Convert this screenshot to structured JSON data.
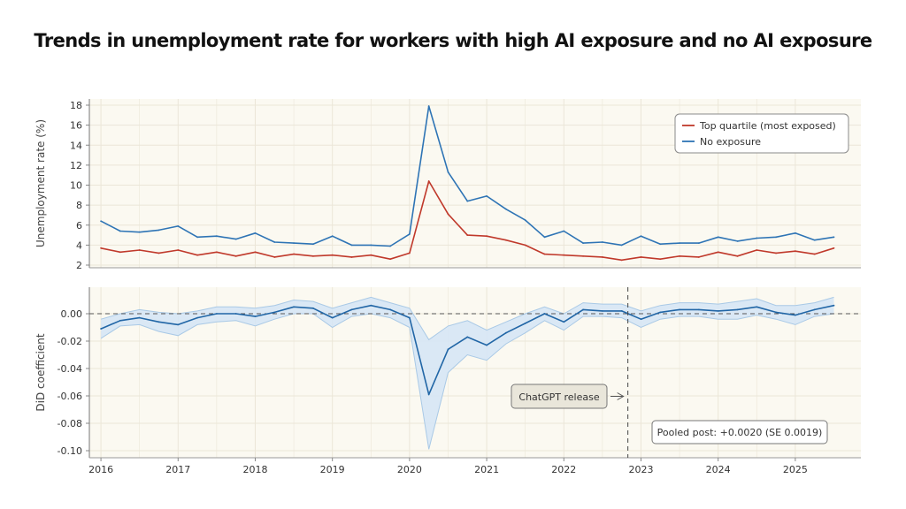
{
  "title": "Trends in unemployment rate for workers with high AI exposure and no AI exposure",
  "colors": {
    "top_quartile": "#c0392b",
    "no_exposure": "#2e74b5",
    "did_line": "#2166a6",
    "ci_fill": "#d6e6f5",
    "ci_stroke": "#a9c9e6",
    "panel_bg": "#fbf9f1",
    "grid": "#ebe6d8"
  },
  "chart_data": [
    {
      "type": "line",
      "ylabel": "Unemployment rate (%)",
      "ylim": [
        2,
        18
      ],
      "yticks": [
        2,
        4,
        6,
        8,
        10,
        12,
        14,
        16,
        18
      ],
      "grid": true,
      "legend_position": "top-right",
      "x": [
        2016.0,
        2016.25,
        2016.5,
        2016.75,
        2017.0,
        2017.25,
        2017.5,
        2017.75,
        2018.0,
        2018.25,
        2018.5,
        2018.75,
        2019.0,
        2019.25,
        2019.5,
        2019.75,
        2020.0,
        2020.25,
        2020.5,
        2020.75,
        2021.0,
        2021.25,
        2021.5,
        2021.75,
        2022.0,
        2022.25,
        2022.5,
        2022.75,
        2023.0,
        2023.25,
        2023.5,
        2023.75,
        2024.0,
        2024.25,
        2024.5,
        2024.75,
        2025.0,
        2025.25,
        2025.5
      ],
      "series": [
        {
          "name": "Top quartile (most exposed)",
          "values": [
            3.7,
            3.3,
            3.5,
            3.2,
            3.5,
            3.0,
            3.3,
            2.9,
            3.3,
            2.8,
            3.1,
            2.9,
            3.0,
            2.8,
            3.0,
            2.6,
            3.2,
            10.4,
            7.1,
            5.0,
            4.9,
            4.5,
            4.0,
            3.1,
            3.0,
            2.9,
            2.8,
            2.5,
            2.8,
            2.6,
            2.9,
            2.8,
            3.3,
            2.9,
            3.5,
            3.2,
            3.4,
            3.1,
            3.7
          ]
        },
        {
          "name": "No exposure",
          "values": [
            6.4,
            5.4,
            5.3,
            5.5,
            5.9,
            4.8,
            4.9,
            4.6,
            5.2,
            4.3,
            4.2,
            4.1,
            4.9,
            4.0,
            4.0,
            3.9,
            5.1,
            17.9,
            11.3,
            8.4,
            8.9,
            7.6,
            6.5,
            4.8,
            5.4,
            4.2,
            4.3,
            4.0,
            4.9,
            4.1,
            4.2,
            4.2,
            4.8,
            4.4,
            4.7,
            4.8,
            5.2,
            4.5,
            4.8
          ]
        }
      ]
    },
    {
      "type": "line",
      "ylabel": "DiD coefficient",
      "ylim": [
        -0.1,
        0.01
      ],
      "yticks": [
        -0.1,
        -0.08,
        -0.06,
        -0.04,
        -0.02,
        0.0
      ],
      "ytick_labels": [
        "-0.10",
        "-0.08",
        "-0.06",
        "-0.04",
        "-0.02",
        "0.00"
      ],
      "grid": true,
      "reference_line_y": 0.0,
      "xtick_labels": [
        "2016",
        "2017",
        "2018",
        "2019",
        "2020",
        "2021",
        "2022",
        "2023",
        "2024",
        "2025"
      ],
      "xticks": [
        2016,
        2017,
        2018,
        2019,
        2020,
        2021,
        2022,
        2023,
        2024,
        2025
      ],
      "x": [
        2016.0,
        2016.25,
        2016.5,
        2016.75,
        2017.0,
        2017.25,
        2017.5,
        2017.75,
        2018.0,
        2018.25,
        2018.5,
        2018.75,
        2019.0,
        2019.25,
        2019.5,
        2019.75,
        2020.0,
        2020.25,
        2020.5,
        2020.75,
        2021.0,
        2021.25,
        2021.5,
        2021.75,
        2022.0,
        2022.25,
        2022.5,
        2022.75,
        2023.0,
        2023.25,
        2023.5,
        2023.75,
        2024.0,
        2024.25,
        2024.5,
        2024.75,
        2025.0,
        2025.25,
        2025.5
      ],
      "series": [
        {
          "values": [
            -0.011,
            -0.005,
            -0.003,
            -0.006,
            -0.008,
            -0.003,
            0.0,
            0.0,
            -0.002,
            0.001,
            0.005,
            0.004,
            -0.003,
            0.003,
            0.006,
            0.003,
            -0.003,
            -0.059,
            -0.026,
            -0.017,
            -0.023,
            -0.014,
            -0.007,
            0.0,
            -0.006,
            0.003,
            0.002,
            0.002,
            -0.004,
            0.001,
            0.003,
            0.003,
            0.002,
            0.003,
            0.005,
            0.001,
            -0.001,
            0.003,
            0.006
          ],
          "ci_low": [
            -0.018,
            -0.009,
            -0.008,
            -0.013,
            -0.016,
            -0.008,
            -0.006,
            -0.005,
            -0.009,
            -0.004,
            0.0,
            0.0,
            -0.01,
            -0.002,
            0.0,
            -0.003,
            -0.01,
            -0.099,
            -0.043,
            -0.03,
            -0.034,
            -0.022,
            -0.014,
            -0.005,
            -0.012,
            -0.002,
            -0.002,
            -0.003,
            -0.01,
            -0.004,
            -0.002,
            -0.002,
            -0.004,
            -0.004,
            -0.001,
            -0.004,
            -0.008,
            -0.002,
            0.0
          ],
          "ci_high": [
            -0.004,
            0.0,
            0.003,
            0.001,
            0.0,
            0.002,
            0.005,
            0.005,
            0.004,
            0.006,
            0.01,
            0.009,
            0.004,
            0.008,
            0.012,
            0.008,
            0.004,
            -0.019,
            -0.009,
            -0.005,
            -0.012,
            -0.006,
            0.0,
            0.005,
            0.0,
            0.008,
            0.007,
            0.007,
            0.002,
            0.006,
            0.008,
            0.008,
            0.007,
            0.009,
            0.011,
            0.006,
            0.006,
            0.008,
            0.012
          ]
        }
      ],
      "vline_x": 2022.83,
      "annotations": [
        {
          "text": "ChatGPT release",
          "at_x": 2022.83,
          "at_y": -0.06
        },
        {
          "text": "Pooled post: +0.0020 (SE 0.0019)",
          "position": "bottom-right"
        }
      ]
    }
  ]
}
